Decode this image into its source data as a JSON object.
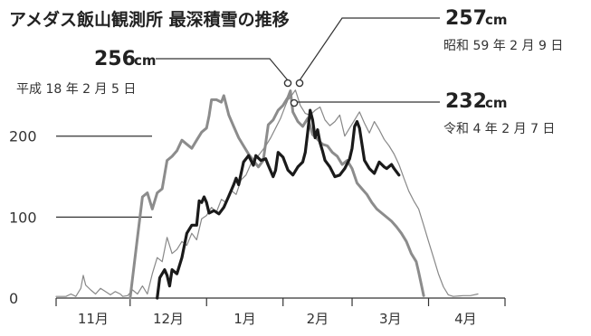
{
  "title": "アメダス飯山観測所 最深積雪の推移",
  "chart_data": {
    "type": "line",
    "title": "アメダス飯山観測所 最深積雪の推移",
    "xlabel": "",
    "ylabel": "",
    "ylim": [
      0,
      270
    ],
    "x_domain": [
      0,
      182
    ],
    "y_ticks": [
      {
        "value": 0,
        "label": "0"
      },
      {
        "value": 100,
        "label": "100"
      },
      {
        "value": 200,
        "label": "200"
      }
    ],
    "month_ticks": [
      0,
      30,
      61,
      92,
      120,
      151,
      182
    ],
    "months": [
      {
        "label": "11月",
        "center": 15
      },
      {
        "label": "12月",
        "center": 45.5
      },
      {
        "label": "1月",
        "center": 76.5
      },
      {
        "label": "2月",
        "center": 106
      },
      {
        "label": "3月",
        "center": 135.5
      },
      {
        "label": "4月",
        "center": 166
      }
    ],
    "series": [
      {
        "name": "平成18年",
        "color": "#8c8c8c",
        "width": 3,
        "points": [
          [
            30,
            0
          ],
          [
            33,
            75
          ],
          [
            35,
            125
          ],
          [
            37,
            130
          ],
          [
            39,
            110
          ],
          [
            41,
            130
          ],
          [
            43,
            135
          ],
          [
            45,
            170
          ],
          [
            47,
            175
          ],
          [
            49,
            182
          ],
          [
            51,
            195
          ],
          [
            53,
            190
          ],
          [
            55,
            185
          ],
          [
            57,
            195
          ],
          [
            59,
            205
          ],
          [
            61,
            210
          ],
          [
            62,
            225
          ],
          [
            63,
            245
          ],
          [
            65,
            245
          ],
          [
            67,
            242
          ],
          [
            68,
            250
          ],
          [
            70,
            226
          ],
          [
            72,
            212
          ],
          [
            74,
            198
          ],
          [
            76,
            188
          ],
          [
            78,
            178
          ],
          [
            80,
            170
          ],
          [
            82,
            162
          ],
          [
            84,
            170
          ],
          [
            86,
            214
          ],
          [
            88,
            220
          ],
          [
            90,
            232
          ],
          [
            92,
            238
          ],
          [
            94,
            248
          ],
          [
            95,
            256
          ],
          [
            96,
            230
          ],
          [
            98,
            218
          ],
          [
            100,
            212
          ],
          [
            102,
            222
          ],
          [
            104,
            202
          ],
          [
            106,
            196
          ],
          [
            108,
            190
          ],
          [
            110,
            188
          ],
          [
            112,
            180
          ],
          [
            114,
            175
          ],
          [
            116,
            165
          ],
          [
            118,
            170
          ],
          [
            120,
            160
          ],
          [
            122,
            142
          ],
          [
            124,
            135
          ],
          [
            126,
            128
          ],
          [
            128,
            118
          ],
          [
            130,
            110
          ],
          [
            132,
            105
          ],
          [
            134,
            100
          ],
          [
            136,
            95
          ],
          [
            138,
            88
          ],
          [
            140,
            80
          ],
          [
            142,
            70
          ],
          [
            144,
            55
          ],
          [
            146,
            45
          ],
          [
            147,
            32
          ],
          [
            148,
            18
          ],
          [
            149,
            3
          ]
        ]
      },
      {
        "name": "昭和59年",
        "color": "#888888",
        "width": 1.2,
        "points": [
          [
            0,
            2
          ],
          [
            4,
            2
          ],
          [
            6,
            5
          ],
          [
            8,
            2
          ],
          [
            10,
            12
          ],
          [
            11,
            28
          ],
          [
            12,
            16
          ],
          [
            14,
            10
          ],
          [
            16,
            5
          ],
          [
            18,
            12
          ],
          [
            20,
            8
          ],
          [
            22,
            4
          ],
          [
            24,
            8
          ],
          [
            26,
            5
          ],
          [
            27,
            2
          ],
          [
            29,
            3
          ],
          [
            31,
            10
          ],
          [
            33,
            5
          ],
          [
            35,
            15
          ],
          [
            37,
            5
          ],
          [
            39,
            30
          ],
          [
            41,
            50
          ],
          [
            43,
            45
          ],
          [
            45,
            75
          ],
          [
            47,
            55
          ],
          [
            49,
            60
          ],
          [
            51,
            70
          ],
          [
            53,
            65
          ],
          [
            55,
            80
          ],
          [
            57,
            72
          ],
          [
            59,
            98
          ],
          [
            61,
            102
          ],
          [
            63,
            112
          ],
          [
            65,
            106
          ],
          [
            67,
            122
          ],
          [
            69,
            118
          ],
          [
            71,
            133
          ],
          [
            73,
            128
          ],
          [
            75,
            146
          ],
          [
            77,
            152
          ],
          [
            79,
            166
          ],
          [
            81,
            172
          ],
          [
            83,
            180
          ],
          [
            85,
            188
          ],
          [
            87,
            198
          ],
          [
            89,
            210
          ],
          [
            91,
            222
          ],
          [
            93,
            238
          ],
          [
            94,
            245
          ],
          [
            95,
            248
          ],
          [
            97,
            257
          ],
          [
            99,
            238
          ],
          [
            101,
            228
          ],
          [
            103,
            226
          ],
          [
            105,
            232
          ],
          [
            107,
            236
          ],
          [
            109,
            220
          ],
          [
            111,
            213
          ],
          [
            113,
            218
          ],
          [
            115,
            226
          ],
          [
            117,
            200
          ],
          [
            119,
            210
          ],
          [
            121,
            220
          ],
          [
            123,
            230
          ],
          [
            125,
            216
          ],
          [
            127,
            204
          ],
          [
            129,
            218
          ],
          [
            131,
            208
          ],
          [
            133,
            196
          ],
          [
            135,
            188
          ],
          [
            137,
            178
          ],
          [
            139,
            165
          ],
          [
            141,
            148
          ],
          [
            143,
            132
          ],
          [
            145,
            120
          ],
          [
            147,
            110
          ],
          [
            149,
            90
          ],
          [
            151,
            70
          ],
          [
            153,
            50
          ],
          [
            155,
            30
          ],
          [
            157,
            14
          ],
          [
            159,
            4
          ],
          [
            161,
            2
          ],
          [
            165,
            3
          ],
          [
            168,
            3
          ],
          [
            171,
            5
          ]
        ]
      },
      {
        "name": "令和4年",
        "color": "#1a1a1a",
        "width": 3.2,
        "points": [
          [
            41,
            0
          ],
          [
            42,
            25
          ],
          [
            44,
            35
          ],
          [
            45,
            28
          ],
          [
            46,
            15
          ],
          [
            47,
            35
          ],
          [
            49,
            30
          ],
          [
            51,
            50
          ],
          [
            53,
            80
          ],
          [
            55,
            90
          ],
          [
            57,
            90
          ],
          [
            58,
            120
          ],
          [
            59,
            118
          ],
          [
            60,
            125
          ],
          [
            61,
            118
          ],
          [
            62,
            105
          ],
          [
            64,
            108
          ],
          [
            66,
            104
          ],
          [
            68,
            112
          ],
          [
            70,
            126
          ],
          [
            72,
            140
          ],
          [
            73,
            148
          ],
          [
            74,
            140
          ],
          [
            76,
            168
          ],
          [
            78,
            176
          ],
          [
            80,
            164
          ],
          [
            81,
            176
          ],
          [
            83,
            170
          ],
          [
            85,
            172
          ],
          [
            86,
            164
          ],
          [
            88,
            150
          ],
          [
            89,
            158
          ],
          [
            90,
            180
          ],
          [
            92,
            174
          ],
          [
            94,
            158
          ],
          [
            96,
            152
          ],
          [
            98,
            162
          ],
          [
            100,
            168
          ],
          [
            101,
            180
          ],
          [
            102,
            205
          ],
          [
            103,
            232
          ],
          [
            104,
            220
          ],
          [
            105,
            198
          ],
          [
            106,
            208
          ],
          [
            107,
            192
          ],
          [
            108,
            182
          ],
          [
            109,
            170
          ],
          [
            111,
            162
          ],
          [
            113,
            150
          ],
          [
            115,
            152
          ],
          [
            117,
            160
          ],
          [
            119,
            172
          ],
          [
            120,
            185
          ],
          [
            121,
            212
          ],
          [
            122,
            218
          ],
          [
            123,
            210
          ],
          [
            125,
            170
          ],
          [
            127,
            160
          ],
          [
            129,
            154
          ],
          [
            131,
            168
          ],
          [
            133,
            162
          ],
          [
            134,
            160
          ],
          [
            136,
            165
          ],
          [
            137,
            160
          ],
          [
            139,
            152
          ]
        ]
      }
    ],
    "annotations": [
      {
        "value": "256",
        "unit": "cm",
        "date": "平成 18 年 2 月 5 日",
        "series": "平成18年",
        "x": 95,
        "y": 256
      },
      {
        "value": "257",
        "unit": "cm",
        "date": "昭和 59 年 2 月 9 日",
        "series": "昭和59年",
        "x": 97,
        "y": 257
      },
      {
        "value": "232",
        "unit": "cm",
        "date": "令和 4 年 2 月 7 日",
        "series": "令和4年",
        "x": 103,
        "y": 232
      }
    ]
  }
}
